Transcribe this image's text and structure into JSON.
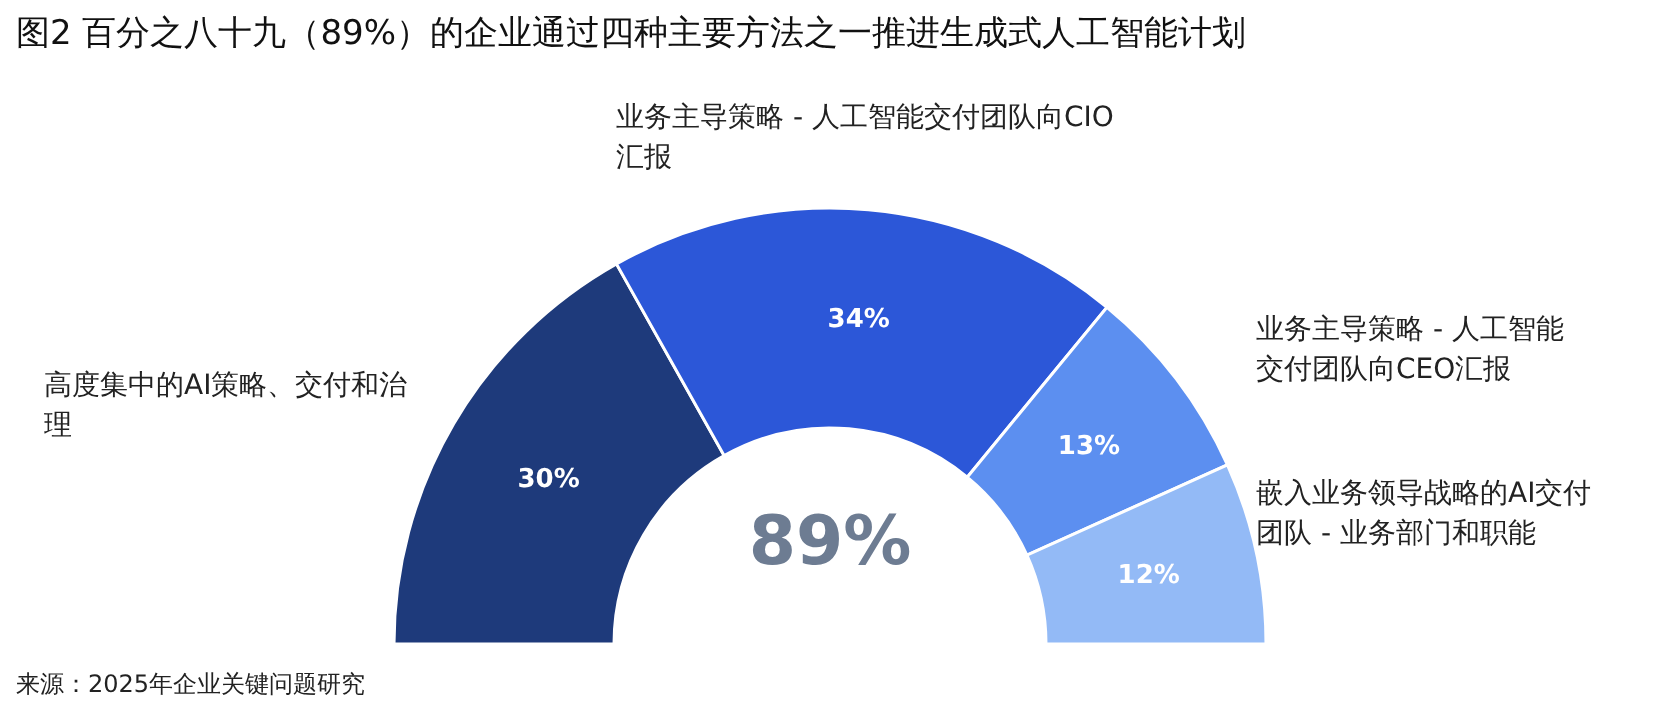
{
  "chart_data": {
    "type": "donut",
    "title": "图2 百分之八十九（89%）的企业通过四种主要方法之一推进生成式人工智能计划",
    "categories": [
      "高度集中的AI策略、交付和治理",
      "业务主导策略 - 人工智能交付团队向CIO汇报",
      "业务主导策略 - 人工智能交付团队向CEO汇报",
      "嵌入业务领导战略的AI交付团队 - 业务部门和职能"
    ],
    "values": [
      30,
      34,
      13,
      12
    ],
    "value_labels": [
      "30%",
      "34%",
      "13%",
      "12%"
    ],
    "colors": [
      "#1e3a7b",
      "#2c57d8",
      "#5c8ff0",
      "#93baf6"
    ],
    "annotations": [
      "89%",
      "来源：2025年企业关键问题研究"
    ]
  }
}
